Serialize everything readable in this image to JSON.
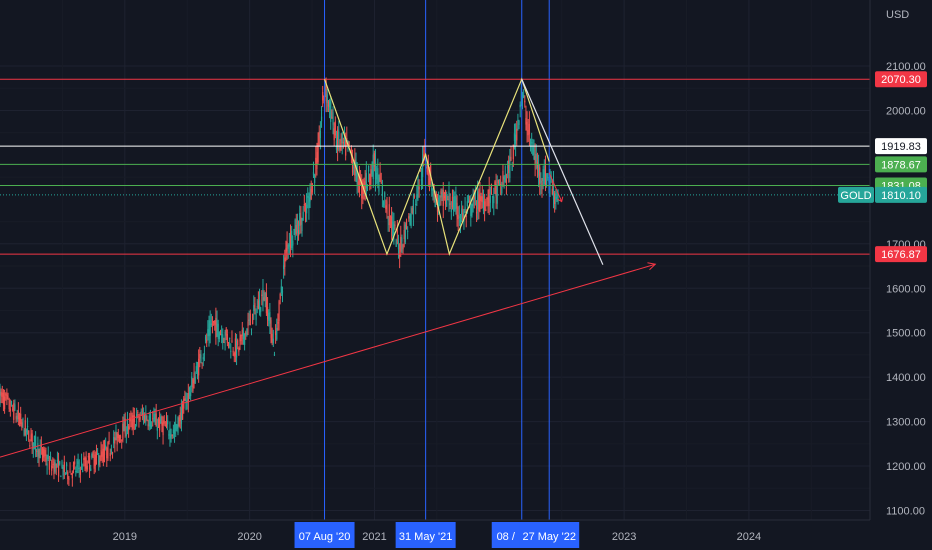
{
  "chart_data": {
    "type": "candlestick",
    "symbol": "GOLD",
    "currency": "USD",
    "ylim": [
      1070,
      2150
    ],
    "y_ticks": [
      "1100.00",
      "1200.00",
      "1300.00",
      "1400.00",
      "1500.00",
      "1600.00",
      "1700.00",
      "2000.00",
      "2100.00"
    ],
    "x_ticks": [
      "2019",
      "2020",
      "2021",
      "2023",
      "2024"
    ],
    "x_ticks_t": [
      2019.0,
      2020.0,
      2021.0,
      2023.0,
      2024.0
    ],
    "date_tags": [
      {
        "label": "07 Aug '20",
        "t": 2020.6
      },
      {
        "label": "31 May '21",
        "t": 2021.41
      },
      {
        "label": "08 /",
        "t": 2022.18
      },
      {
        "label": "27 May '22",
        "t": 2022.4
      }
    ],
    "horizontal_levels": [
      {
        "value": 2070.3,
        "label": "2070.30",
        "color": "#f23645",
        "text_color": "#ffffff"
      },
      {
        "value": 1919.83,
        "label": "1919.83",
        "color": "#ffffff",
        "text_color": "#131722"
      },
      {
        "value": 1878.67,
        "label": "1878.67",
        "color": "#4caf50",
        "text_color": "#ffffff"
      },
      {
        "value": 1831.08,
        "label": "1831.08",
        "color": "#4caf50",
        "text_color": "#ffffff"
      },
      {
        "value": 1676.87,
        "label": "1676.87",
        "color": "#f23645",
        "text_color": "#ffffff"
      }
    ],
    "last_price": {
      "value": 1810.1,
      "label": "1810.10",
      "symbol_label": "GOLD",
      "color": "#26a69a"
    },
    "price_path": [
      [
        2018.0,
        1360
      ],
      [
        2018.12,
        1320
      ],
      [
        2018.25,
        1260
      ],
      [
        2018.4,
        1205
      ],
      [
        2018.55,
        1185
      ],
      [
        2018.7,
        1205
      ],
      [
        2018.85,
        1230
      ],
      [
        2019.0,
        1285
      ],
      [
        2019.15,
        1315
      ],
      [
        2019.3,
        1290
      ],
      [
        2019.4,
        1275
      ],
      [
        2019.55,
        1390
      ],
      [
        2019.7,
        1520
      ],
      [
        2019.8,
        1495
      ],
      [
        2019.9,
        1460
      ],
      [
        2020.0,
        1520
      ],
      [
        2020.12,
        1590
      ],
      [
        2020.2,
        1465
      ],
      [
        2020.3,
        1700
      ],
      [
        2020.45,
        1770
      ],
      [
        2020.55,
        1900
      ],
      [
        2020.6,
        2060
      ],
      [
        2020.7,
        1930
      ],
      [
        2020.8,
        1910
      ],
      [
        2020.9,
        1820
      ],
      [
        2021.0,
        1880
      ],
      [
        2021.1,
        1780
      ],
      [
        2021.2,
        1690
      ],
      [
        2021.3,
        1770
      ],
      [
        2021.41,
        1900
      ],
      [
        2021.5,
        1790
      ],
      [
        2021.6,
        1800
      ],
      [
        2021.7,
        1760
      ],
      [
        2021.8,
        1790
      ],
      [
        2021.9,
        1800
      ],
      [
        2022.0,
        1820
      ],
      [
        2022.1,
        1880
      ],
      [
        2022.18,
        2040
      ],
      [
        2022.25,
        1930
      ],
      [
        2022.32,
        1860
      ],
      [
        2022.4,
        1845
      ],
      [
        2022.45,
        1810
      ],
      [
        2022.48,
        1810
      ]
    ],
    "w_pattern": [
      [
        2020.6,
        2070.3
      ],
      [
        2021.1,
        1677
      ],
      [
        2021.41,
        1901
      ],
      [
        2021.6,
        1677
      ],
      [
        2022.18,
        2070.3
      ],
      [
        2022.4,
        1885
      ]
    ],
    "trend_line_white": [
      [
        2022.18,
        2070.3
      ],
      [
        2022.83,
        1653
      ]
    ],
    "trend_line_red": [
      [
        2018.0,
        1220
      ],
      [
        2023.25,
        1654
      ]
    ],
    "projection_arrow": [
      [
        2022.4,
        1860
      ],
      [
        2022.5,
        1795
      ]
    ],
    "vertical_lines_t": [
      2020.6,
      2021.41,
      2022.18,
      2022.4
    ]
  }
}
